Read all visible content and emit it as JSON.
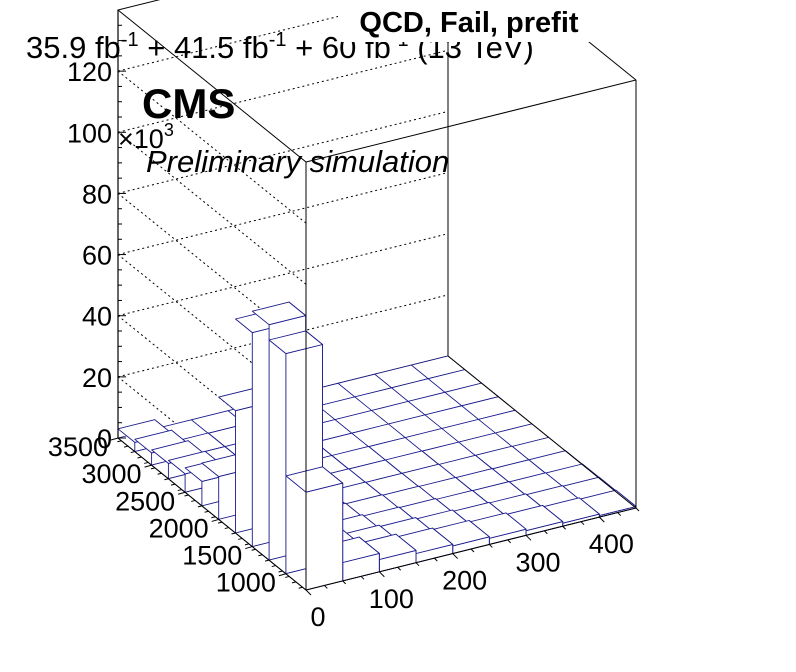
{
  "header": {
    "lumi_parts": [
      {
        "text": "35.9 fb",
        "sup": "-1"
      },
      {
        "text": " + 41.5 fb",
        "sup": "-1"
      },
      {
        "text": " + 60 fb",
        "sup": "-1"
      },
      {
        "text": " (13 TeV)",
        "sup": ""
      }
    ],
    "title": "QCD, Fail, prefit",
    "cms_label": "CMS",
    "subtitle": "Preliminary simulation"
  },
  "colors": {
    "bar_edge": "#1a1a8c",
    "bar_fill": "#ffffff",
    "frame": "#000000",
    "grid": "#000000"
  },
  "chart_data": {
    "type": "lego3d",
    "title": "QCD, Fail, prefit",
    "z_multiplier_label": {
      "base": "×10",
      "exp": "3"
    },
    "x_axis": {
      "label": "",
      "range": [
        0,
        450
      ],
      "ticks": [
        0,
        100,
        200,
        300,
        400
      ]
    },
    "y_axis": {
      "label": "",
      "range": [
        700,
        3500
      ],
      "ticks": [
        1000,
        1500,
        2000,
        2500,
        3000,
        3500
      ]
    },
    "z_axis": {
      "label": "",
      "range": [
        0,
        140
      ],
      "ticks": [
        0,
        20,
        40,
        60,
        80,
        100,
        120
      ],
      "grid": true
    },
    "x_bins": [
      0,
      50,
      100,
      150,
      200,
      250,
      300,
      350,
      400,
      450
    ],
    "y_bins": [
      700,
      1000,
      1250,
      1500,
      1750,
      2000,
      2250,
      2500,
      2750,
      3000,
      3250,
      3500
    ],
    "values_note_units": "thousands of events; rows indexed by y bin (low to high), columns by x bin (low to high)",
    "values": [
      [
        32,
        6,
        4,
        3,
        2.5,
        2,
        1.5,
        1,
        0.5
      ],
      [
        72,
        4,
        2.5,
        2,
        1.5,
        1,
        0.8,
        0.5,
        0.3
      ],
      [
        77,
        2,
        1.5,
        1,
        0.8,
        0.5,
        0.4,
        0.3,
        0.2
      ],
      [
        70,
        1.2,
        0.8,
        0.6,
        0.4,
        0.3,
        0.2,
        0.1,
        0.1
      ],
      [
        40,
        0.8,
        0.5,
        0.3,
        0.2,
        0.2,
        0.1,
        0.1,
        0
      ],
      [
        14,
        0.5,
        0.3,
        0.2,
        0.1,
        0.1,
        0,
        0,
        0
      ],
      [
        8,
        0.3,
        0.2,
        0.1,
        0.1,
        0,
        0,
        0,
        0
      ],
      [
        6,
        0.2,
        0.1,
        0.1,
        0,
        0,
        0,
        0,
        0
      ],
      [
        5,
        0.1,
        0.1,
        0,
        0,
        0,
        0,
        0,
        0
      ],
      [
        4,
        0.1,
        0,
        0,
        0,
        0,
        0,
        0,
        0
      ],
      [
        3,
        0,
        0,
        0,
        0,
        0,
        0,
        0,
        0
      ]
    ]
  }
}
